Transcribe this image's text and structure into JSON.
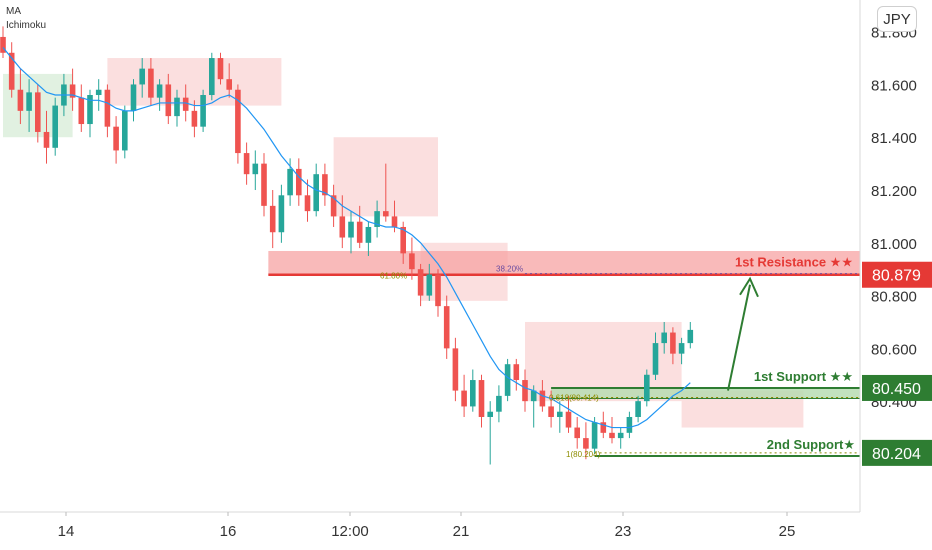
{
  "legend": {
    "ma_label": "MA",
    "ichimoku_label": "Ichimoku"
  },
  "currency_button": "JPY",
  "colors": {
    "up": "#26a69a",
    "down": "#ef5350",
    "ma": "#2196f3",
    "resistance": "#e53935",
    "support": "#2e7d32",
    "cloud_red": "#f8c4c4",
    "cloud_green": "#c8e6c9"
  },
  "chart_data": {
    "type": "candlestick",
    "title": "",
    "xlabel": "",
    "ylabel": "",
    "ylim": [
      79.98,
      81.92
    ],
    "y_ticks": [
      81.8,
      81.6,
      81.4,
      81.2,
      81.0,
      80.8,
      80.6,
      80.4
    ],
    "y_tick_labels": [
      "81.800",
      "81.600",
      "81.400",
      "81.200",
      "81.000",
      "80.800",
      "80.600",
      "80.400"
    ],
    "x_tick_labels": [
      "14",
      "16",
      "12:00",
      "21",
      "23",
      "25"
    ],
    "levels": [
      {
        "name": "1st Resistance ★★",
        "price": 80.879,
        "label": "80.879",
        "kind": "resistance"
      },
      {
        "name": "1st Support ★★",
        "price": 80.45,
        "label": "80.450",
        "kind": "support"
      },
      {
        "name": "2nd Support★",
        "price": 80.204,
        "label": "80.204",
        "kind": "support"
      }
    ],
    "fib_labels": [
      "61.80%",
      "38.20%",
      "0.618(80.414)",
      "1(80.204)"
    ],
    "candles": [
      {
        "o": 81.78,
        "h": 81.82,
        "l": 81.7,
        "c": 81.72
      },
      {
        "o": 81.72,
        "h": 81.76,
        "l": 81.55,
        "c": 81.58
      },
      {
        "o": 81.58,
        "h": 81.66,
        "l": 81.45,
        "c": 81.5
      },
      {
        "o": 81.5,
        "h": 81.62,
        "l": 81.42,
        "c": 81.57
      },
      {
        "o": 81.57,
        "h": 81.6,
        "l": 81.38,
        "c": 81.42
      },
      {
        "o": 81.42,
        "h": 81.5,
        "l": 81.3,
        "c": 81.36
      },
      {
        "o": 81.36,
        "h": 81.55,
        "l": 81.33,
        "c": 81.52
      },
      {
        "o": 81.52,
        "h": 81.64,
        "l": 81.48,
        "c": 81.6
      },
      {
        "o": 81.6,
        "h": 81.66,
        "l": 81.5,
        "c": 81.55
      },
      {
        "o": 81.55,
        "h": 81.6,
        "l": 81.42,
        "c": 81.45
      },
      {
        "o": 81.45,
        "h": 81.58,
        "l": 81.4,
        "c": 81.56
      },
      {
        "o": 81.56,
        "h": 81.62,
        "l": 81.5,
        "c": 81.58
      },
      {
        "o": 81.58,
        "h": 81.6,
        "l": 81.4,
        "c": 81.44
      },
      {
        "o": 81.44,
        "h": 81.48,
        "l": 81.3,
        "c": 81.35
      },
      {
        "o": 81.35,
        "h": 81.52,
        "l": 81.32,
        "c": 81.5
      },
      {
        "o": 81.5,
        "h": 81.62,
        "l": 81.46,
        "c": 81.6
      },
      {
        "o": 81.6,
        "h": 81.7,
        "l": 81.55,
        "c": 81.66
      },
      {
        "o": 81.66,
        "h": 81.7,
        "l": 81.52,
        "c": 81.55
      },
      {
        "o": 81.55,
        "h": 81.62,
        "l": 81.5,
        "c": 81.6
      },
      {
        "o": 81.6,
        "h": 81.64,
        "l": 81.45,
        "c": 81.48
      },
      {
        "o": 81.48,
        "h": 81.58,
        "l": 81.44,
        "c": 81.55
      },
      {
        "o": 81.55,
        "h": 81.6,
        "l": 81.46,
        "c": 81.5
      },
      {
        "o": 81.5,
        "h": 81.54,
        "l": 81.4,
        "c": 81.44
      },
      {
        "o": 81.44,
        "h": 81.58,
        "l": 81.42,
        "c": 81.56
      },
      {
        "o": 81.56,
        "h": 81.72,
        "l": 81.54,
        "c": 81.7
      },
      {
        "o": 81.7,
        "h": 81.72,
        "l": 81.6,
        "c": 81.62
      },
      {
        "o": 81.62,
        "h": 81.68,
        "l": 81.55,
        "c": 81.58
      },
      {
        "o": 81.58,
        "h": 81.6,
        "l": 81.3,
        "c": 81.34
      },
      {
        "o": 81.34,
        "h": 81.38,
        "l": 81.22,
        "c": 81.26
      },
      {
        "o": 81.26,
        "h": 81.35,
        "l": 81.2,
        "c": 81.3
      },
      {
        "o": 81.3,
        "h": 81.34,
        "l": 81.1,
        "c": 81.14
      },
      {
        "o": 81.14,
        "h": 81.2,
        "l": 80.98,
        "c": 81.04
      },
      {
        "o": 81.04,
        "h": 81.22,
        "l": 81.0,
        "c": 81.18
      },
      {
        "o": 81.18,
        "h": 81.32,
        "l": 81.14,
        "c": 81.28
      },
      {
        "o": 81.28,
        "h": 81.32,
        "l": 81.14,
        "c": 81.18
      },
      {
        "o": 81.18,
        "h": 81.24,
        "l": 81.08,
        "c": 81.12
      },
      {
        "o": 81.12,
        "h": 81.3,
        "l": 81.1,
        "c": 81.26
      },
      {
        "o": 81.26,
        "h": 81.3,
        "l": 81.14,
        "c": 81.18
      },
      {
        "o": 81.18,
        "h": 81.22,
        "l": 81.06,
        "c": 81.1
      },
      {
        "o": 81.1,
        "h": 81.18,
        "l": 80.98,
        "c": 81.02
      },
      {
        "o": 81.02,
        "h": 81.12,
        "l": 80.96,
        "c": 81.08
      },
      {
        "o": 81.08,
        "h": 81.14,
        "l": 80.98,
        "c": 81.0
      },
      {
        "o": 81.0,
        "h": 81.08,
        "l": 80.95,
        "c": 81.06
      },
      {
        "o": 81.06,
        "h": 81.16,
        "l": 81.02,
        "c": 81.12
      },
      {
        "o": 81.12,
        "h": 81.3,
        "l": 81.08,
        "c": 81.1
      },
      {
        "o": 81.1,
        "h": 81.16,
        "l": 81.04,
        "c": 81.06
      },
      {
        "o": 81.06,
        "h": 81.08,
        "l": 80.92,
        "c": 80.96
      },
      {
        "o": 80.96,
        "h": 81.02,
        "l": 80.86,
        "c": 80.9
      },
      {
        "o": 80.9,
        "h": 80.92,
        "l": 80.76,
        "c": 80.8
      },
      {
        "o": 80.8,
        "h": 80.92,
        "l": 80.78,
        "c": 80.88
      },
      {
        "o": 80.88,
        "h": 80.9,
        "l": 80.72,
        "c": 80.76
      },
      {
        "o": 80.76,
        "h": 80.8,
        "l": 80.56,
        "c": 80.6
      },
      {
        "o": 80.6,
        "h": 80.64,
        "l": 80.4,
        "c": 80.44
      },
      {
        "o": 80.44,
        "h": 80.5,
        "l": 80.34,
        "c": 80.38
      },
      {
        "o": 80.38,
        "h": 80.52,
        "l": 80.36,
        "c": 80.48
      },
      {
        "o": 80.48,
        "h": 80.5,
        "l": 80.3,
        "c": 80.34
      },
      {
        "o": 80.34,
        "h": 80.4,
        "l": 80.16,
        "c": 80.36
      },
      {
        "o": 80.36,
        "h": 80.46,
        "l": 80.32,
        "c": 80.42
      },
      {
        "o": 80.42,
        "h": 80.56,
        "l": 80.4,
        "c": 80.54
      },
      {
        "o": 80.54,
        "h": 80.56,
        "l": 80.44,
        "c": 80.48
      },
      {
        "o": 80.48,
        "h": 80.52,
        "l": 80.36,
        "c": 80.4
      },
      {
        "o": 80.4,
        "h": 80.46,
        "l": 80.3,
        "c": 80.44
      },
      {
        "o": 80.44,
        "h": 80.48,
        "l": 80.36,
        "c": 80.38
      },
      {
        "o": 80.38,
        "h": 80.44,
        "l": 80.3,
        "c": 80.34
      },
      {
        "o": 80.34,
        "h": 80.4,
        "l": 80.28,
        "c": 80.36
      },
      {
        "o": 80.36,
        "h": 80.42,
        "l": 80.28,
        "c": 80.3
      },
      {
        "o": 80.3,
        "h": 80.34,
        "l": 80.22,
        "c": 80.26
      },
      {
        "o": 80.26,
        "h": 80.32,
        "l": 80.18,
        "c": 80.22
      },
      {
        "o": 80.22,
        "h": 80.34,
        "l": 80.2,
        "c": 80.32
      },
      {
        "o": 80.32,
        "h": 80.36,
        "l": 80.26,
        "c": 80.28
      },
      {
        "o": 80.28,
        "h": 80.34,
        "l": 80.24,
        "c": 80.26
      },
      {
        "o": 80.26,
        "h": 80.3,
        "l": 80.22,
        "c": 80.28
      },
      {
        "o": 80.28,
        "h": 80.36,
        "l": 80.26,
        "c": 80.34
      },
      {
        "o": 80.34,
        "h": 80.42,
        "l": 80.32,
        "c": 80.4
      },
      {
        "o": 80.4,
        "h": 80.52,
        "l": 80.38,
        "c": 80.5
      },
      {
        "o": 80.5,
        "h": 80.66,
        "l": 80.48,
        "c": 80.62
      },
      {
        "o": 80.62,
        "h": 80.7,
        "l": 80.58,
        "c": 80.66
      },
      {
        "o": 80.66,
        "h": 80.68,
        "l": 80.54,
        "c": 80.58
      },
      {
        "o": 80.58,
        "h": 80.64,
        "l": 80.54,
        "c": 80.62
      },
      {
        "o": 80.62,
        "h": 80.7,
        "l": 80.6,
        "c": 80.67
      }
    ],
    "ma_values": [
      81.74,
      81.7,
      81.66,
      81.63,
      81.6,
      81.57,
      81.56,
      81.56,
      81.56,
      81.55,
      81.54,
      81.54,
      81.53,
      81.51,
      81.5,
      81.5,
      81.51,
      81.52,
      81.53,
      81.53,
      81.53,
      81.53,
      81.52,
      81.52,
      81.53,
      81.55,
      81.56,
      81.54,
      81.51,
      81.47,
      81.43,
      81.38,
      81.33,
      81.29,
      81.25,
      81.22,
      81.2,
      81.19,
      81.17,
      81.14,
      81.12,
      81.1,
      81.08,
      81.07,
      81.06,
      81.06,
      81.05,
      81.03,
      81.0,
      80.96,
      80.92,
      80.87,
      80.81,
      80.75,
      80.69,
      80.63,
      80.57,
      80.52,
      80.49,
      80.47,
      80.45,
      80.44,
      80.42,
      80.41,
      80.39,
      80.37,
      80.35,
      80.33,
      80.32,
      80.31,
      80.3,
      80.3,
      80.3,
      80.31,
      80.33,
      80.36,
      80.39,
      80.42,
      80.44,
      80.47
    ],
    "cloud": [
      {
        "start": 0,
        "end": 8,
        "top": 81.64,
        "bottom": 81.4,
        "color": "green"
      },
      {
        "start": 12,
        "end": 32,
        "top": 81.7,
        "bottom": 81.52,
        "color": "red"
      },
      {
        "start": 38,
        "end": 50,
        "top": 81.4,
        "bottom": 81.1,
        "color": "red"
      },
      {
        "start": 48,
        "end": 58,
        "top": 81.0,
        "bottom": 80.78,
        "color": "red"
      },
      {
        "start": 60,
        "end": 78,
        "top": 80.7,
        "bottom": 80.4,
        "color": "red"
      },
      {
        "start": 78,
        "end": 92,
        "top": 80.44,
        "bottom": 80.3,
        "color": "red"
      }
    ]
  }
}
